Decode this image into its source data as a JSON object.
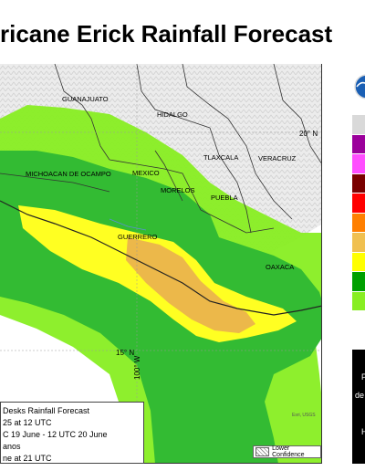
{
  "title": "ricane Erick Rainfall Forecast",
  "map": {
    "states": [
      "GUANAJUATO",
      "HIDALGO",
      "TLAXCALA",
      "MICHOACAN DE OCAMPO",
      "MEXICO",
      "VERACRUZ",
      "MORELOS",
      "PUEBLA",
      "GUERRERO",
      "OAXACA"
    ],
    "coords": {
      "lat_20": "20° N",
      "lat_15": "15° N",
      "lon_100": "100° W"
    },
    "watermark": "Esri, USGS"
  },
  "info_box": {
    "lines": [
      "Desks Rainfall Forecast",
      "25 at 12 UTC",
      "C 19 June - 12 UTC 20 June",
      "anos",
      "ne at 21 UTC"
    ]
  },
  "lower_confidence_label": "Lower Confidence",
  "legend": {
    "colors": [
      "#d9d9d9",
      "#9b009b",
      "#ff4dff",
      "#7a0000",
      "#ff0000",
      "#ff7f00",
      "#f0c050",
      "#ffff00",
      "#00a000",
      "#88ee22"
    ],
    "black_panel_text": [
      "P",
      "de",
      "H"
    ]
  },
  "colors": {
    "light_green": "#88ee22",
    "green": "#33bb33",
    "yellow": "#ffff22",
    "orange": "#ecb84a",
    "water": "#ffffff",
    "land": "#f2f2f2"
  }
}
